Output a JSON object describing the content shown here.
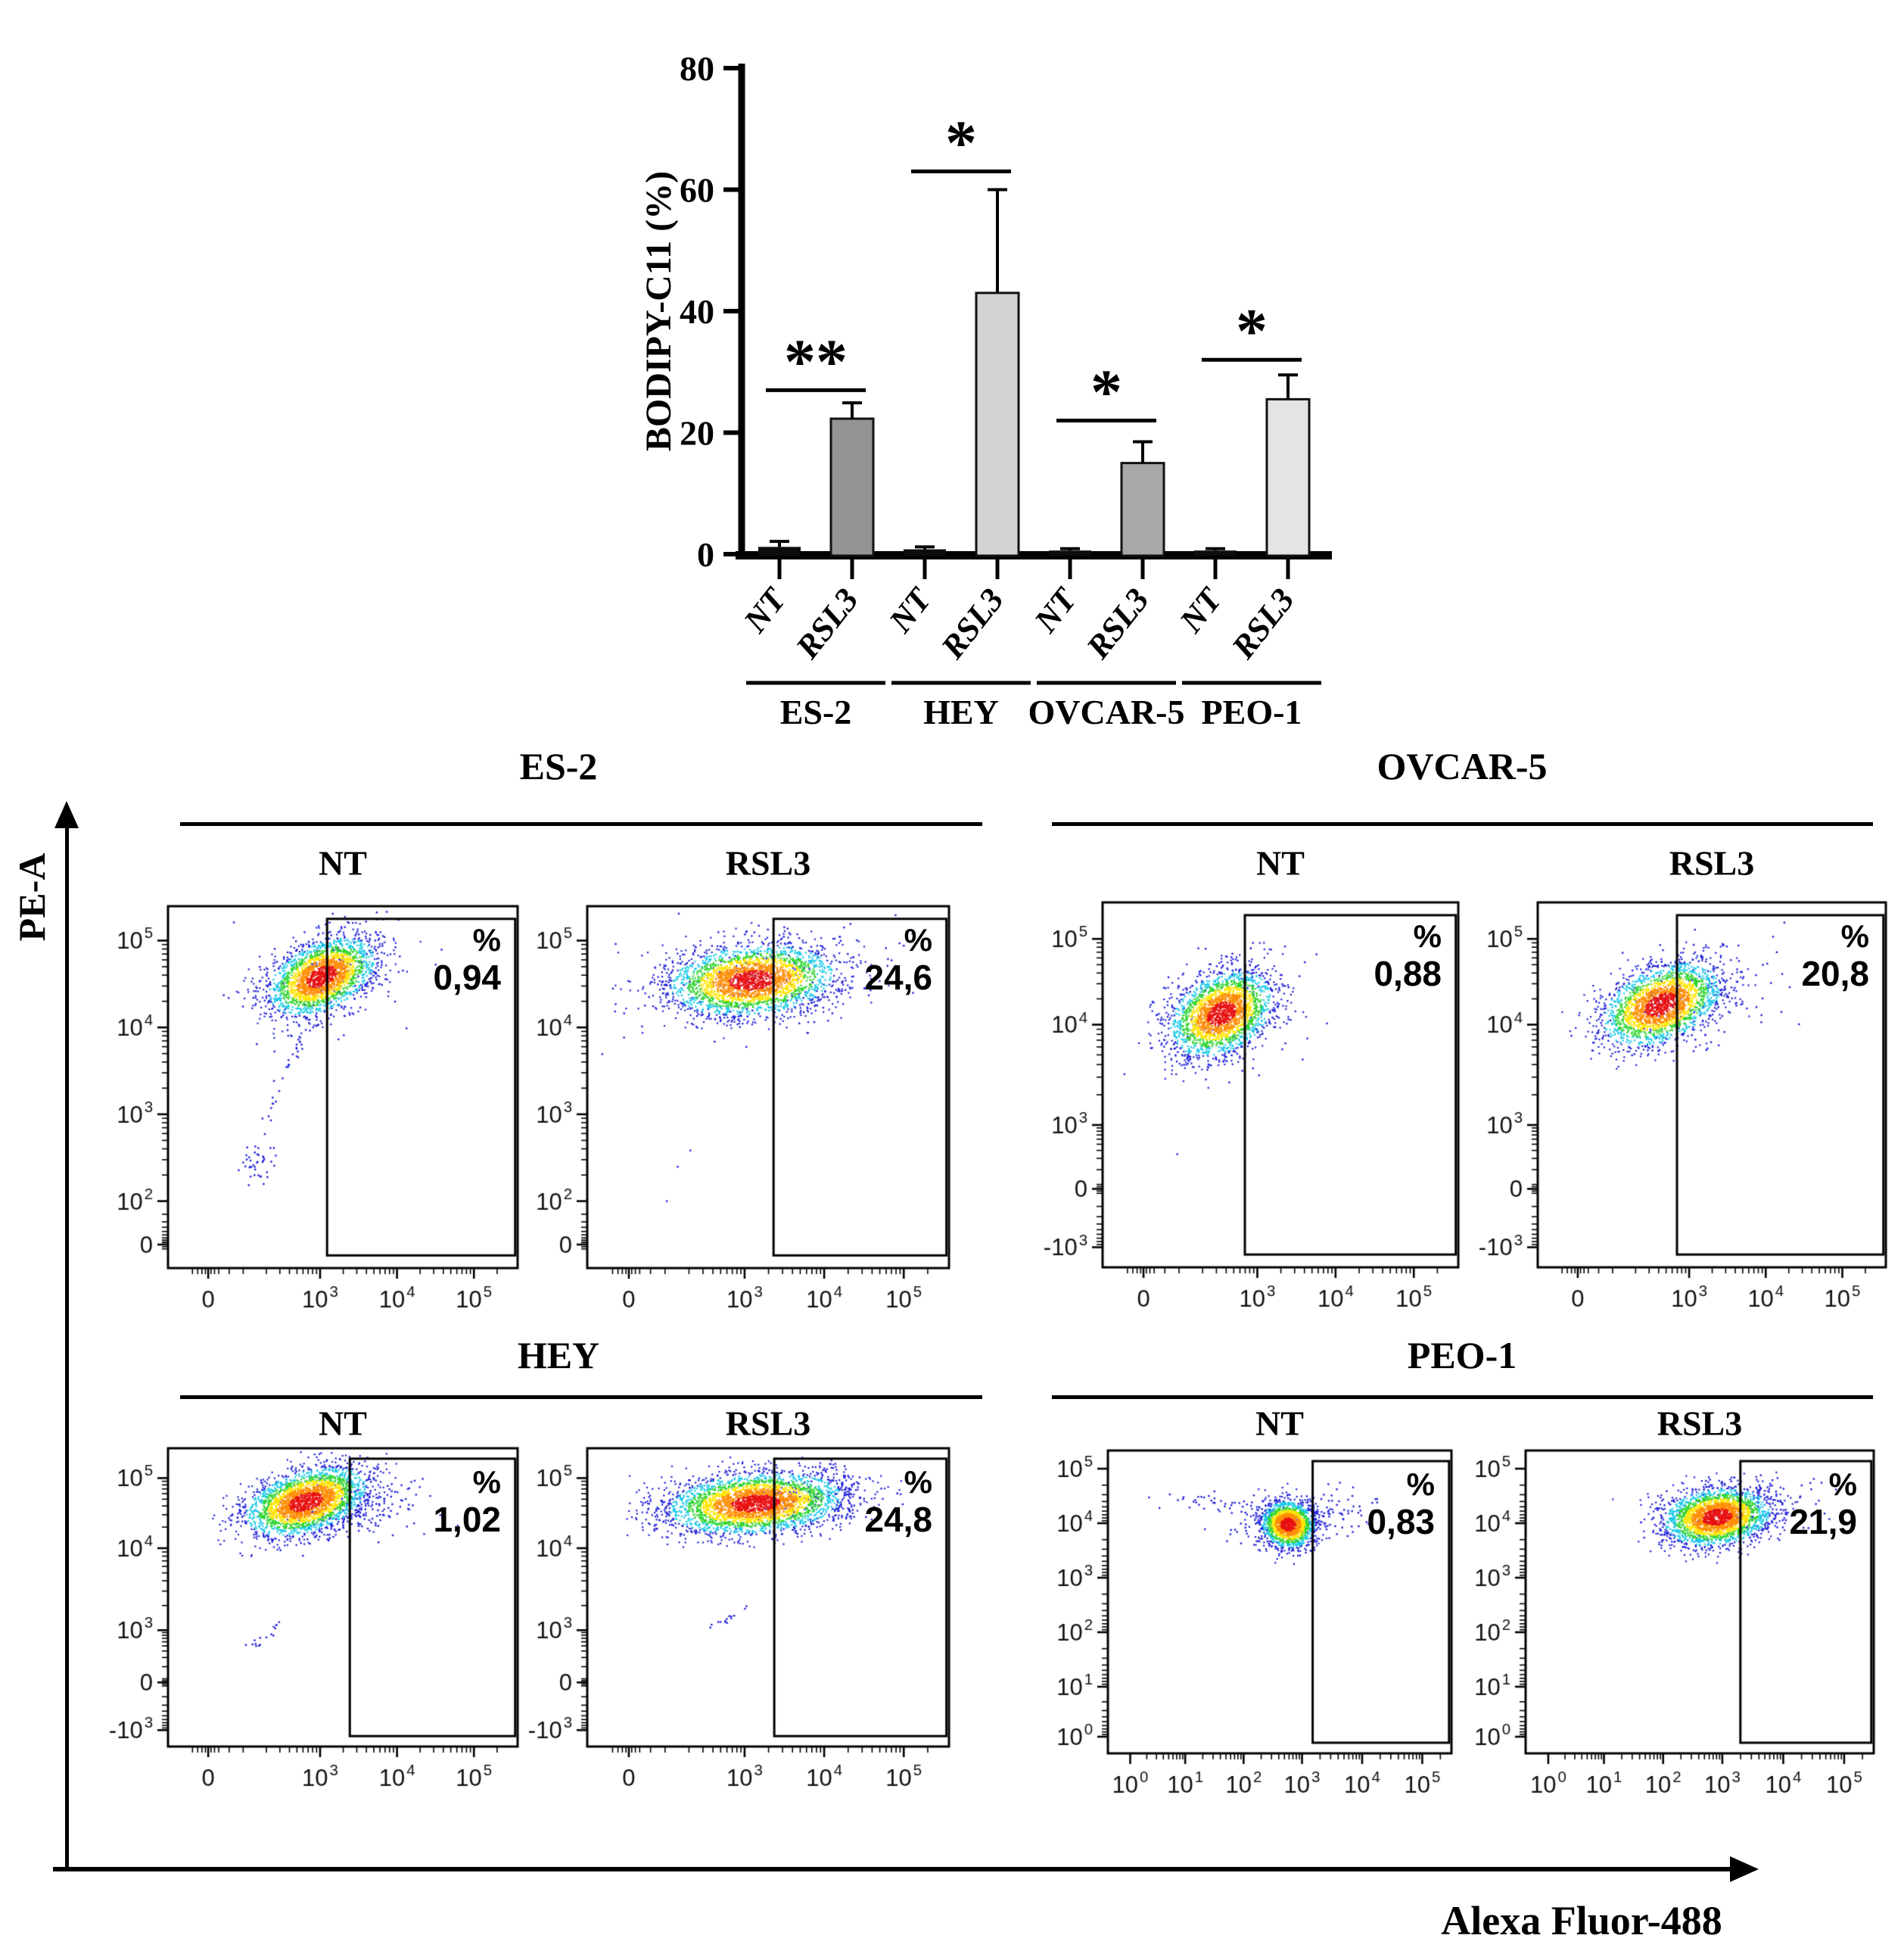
{
  "chart_data": [
    {
      "type": "bar",
      "title": "",
      "ylabel": "BODIPY-C11 (%)",
      "ylim": [
        0,
        80
      ],
      "yticks": [
        0,
        20,
        40,
        60,
        80
      ],
      "categories": [
        "ES-2",
        "HEY",
        "OVCAR-5",
        "PEO-1"
      ],
      "conditions": [
        "NT",
        "RSL3"
      ],
      "series": [
        {
          "name": "NT",
          "values": [
            1.2,
            0.8,
            0.6,
            0.6
          ],
          "errors": [
            0.9,
            0.4,
            0.3,
            0.3
          ],
          "color": "#0d0d0d"
        },
        {
          "name": "RSL3",
          "values": [
            22.3,
            43.0,
            15.0,
            25.5
          ],
          "errors": [
            2.6,
            17.0,
            3.5,
            4.0
          ],
          "bar_colors": [
            "#949494",
            "#d4d4d4",
            "#a8a8a8",
            "#e4e4e4"
          ]
        }
      ],
      "significance": [
        {
          "category": "ES-2",
          "label": "**",
          "bracket_y": 27
        },
        {
          "category": "HEY",
          "label": "*",
          "bracket_y": 63
        },
        {
          "category": "OVCAR-5",
          "label": "*",
          "bracket_y": 22
        },
        {
          "category": "PEO-1",
          "label": "*",
          "bracket_y": 32
        }
      ],
      "legend": "none",
      "grid": false
    },
    {
      "type": "scatter",
      "subtype": "flow-cytometry-density-plots",
      "x_axis_label": "Alexa Fluor-488",
      "y_axis_label": "PE-A",
      "groups": [
        "ES-2",
        "OVCAR-5",
        "HEY",
        "PEO-1"
      ],
      "panels": [
        {
          "group": "ES-2",
          "condition": "NT",
          "percent_label": "%",
          "percent": "0,94",
          "x_ticks": [
            "0",
            "10^3",
            "10^4",
            "10^5"
          ],
          "y_ticks": [
            "10^5",
            "10^4",
            "10^3",
            "10^2",
            "0"
          ],
          "gate_left_frac": 0.455,
          "population": {
            "seed": 11,
            "clusters": [
              {
                "cx": 0.44,
                "cy": 0.195,
                "sx": 0.082,
                "sy": 0.046,
                "rot": -25,
                "n": 2300,
                "dense": true
              },
              {
                "cx": 0.47,
                "cy": 0.18,
                "sx": 0.14,
                "sy": 0.075,
                "rot": -25,
                "n": 130,
                "dense": false
              },
              {
                "cx": 0.26,
                "cy": 0.715,
                "sx": 0.028,
                "sy": 0.022,
                "rot": -35,
                "n": 40,
                "dense": false
              }
            ],
            "segments": [
              {
                "x1": 0.41,
                "y1": 0.33,
                "x2": 0.31,
                "y2": 0.5,
                "n": 22,
                "j": 0.013
              },
              {
                "x1": 0.31,
                "y1": 0.52,
                "x2": 0.27,
                "y2": 0.63,
                "n": 10,
                "j": 0.012
              }
            ],
            "strays": [
              [
                0.52,
                0.3
              ],
              [
                0.55,
                0.28
              ],
              [
                0.5,
                0.14
              ]
            ]
          }
        },
        {
          "group": "ES-2",
          "condition": "RSL3",
          "percent_label": "%",
          "percent": "24,6",
          "x_ticks": [
            "0",
            "10^3",
            "10^4",
            "10^5"
          ],
          "y_ticks": [
            "10^5",
            "10^4",
            "10^3",
            "10^2",
            "0"
          ],
          "gate_left_frac": 0.515,
          "population": {
            "seed": 22,
            "clusters": [
              {
                "cx": 0.455,
                "cy": 0.205,
                "sx": 0.115,
                "sy": 0.048,
                "rot": -5,
                "n": 2700,
                "dense": true
              },
              {
                "cx": 0.47,
                "cy": 0.2,
                "sx": 0.19,
                "sy": 0.08,
                "rot": -5,
                "n": 170,
                "dense": false
              }
            ],
            "segments": [],
            "strays": [
              [
                0.25,
                0.72
              ],
              [
                0.285,
                0.675
              ],
              [
                0.22,
                0.815
              ],
              [
                0.83,
                0.165
              ]
            ]
          }
        },
        {
          "group": "OVCAR-5",
          "condition": "NT",
          "percent_label": "%",
          "percent": "0,88",
          "x_ticks": [
            "0",
            "10^3",
            "10^4",
            "10^5"
          ],
          "y_ticks": [
            "10^5",
            "10^4",
            "10^3",
            "0",
            "-10^3"
          ],
          "gate_left_frac": 0.4,
          "population": {
            "seed": 33,
            "clusters": [
              {
                "cx": 0.335,
                "cy": 0.305,
                "sx": 0.078,
                "sy": 0.052,
                "rot": -28,
                "n": 2300,
                "dense": true
              },
              {
                "cx": 0.35,
                "cy": 0.3,
                "sx": 0.13,
                "sy": 0.085,
                "rot": -28,
                "n": 120,
                "dense": false
              }
            ],
            "segments": [],
            "strays": [
              [
                0.21,
                0.69
              ],
              [
                0.52,
                0.27
              ]
            ]
          }
        },
        {
          "group": "OVCAR-5",
          "condition": "RSL3",
          "percent_label": "%",
          "percent": "20,8",
          "x_ticks": [
            "0",
            "10^3",
            "10^4",
            "10^5"
          ],
          "y_ticks": [
            "10^5",
            "10^4",
            "10^3",
            "0",
            "-10^3"
          ],
          "gate_left_frac": 0.4,
          "population": {
            "seed": 44,
            "clusters": [
              {
                "cx": 0.355,
                "cy": 0.28,
                "sx": 0.09,
                "sy": 0.05,
                "rot": -22,
                "n": 2300,
                "dense": true
              },
              {
                "cx": 0.43,
                "cy": 0.27,
                "sx": 0.13,
                "sy": 0.07,
                "rot": -15,
                "n": 160,
                "dense": false
              }
            ],
            "segments": [],
            "strays": [
              [
                0.7,
                0.3
              ]
            ]
          }
        },
        {
          "group": "HEY",
          "condition": "NT",
          "percent_label": "%",
          "percent": "1,02",
          "x_ticks": [
            "0",
            "10^3",
            "10^4",
            "10^5"
          ],
          "y_ticks": [
            "10^5",
            "10^4",
            "10^3",
            "0",
            "-10^3"
          ],
          "gate_left_frac": 0.52,
          "population": {
            "seed": 55,
            "clusters": [
              {
                "cx": 0.395,
                "cy": 0.18,
                "sx": 0.092,
                "sy": 0.05,
                "rot": -22,
                "n": 2600,
                "dense": true
              },
              {
                "cx": 0.52,
                "cy": 0.2,
                "sx": 0.11,
                "sy": 0.06,
                "rot": -10,
                "n": 180,
                "dense": false
              }
            ],
            "segments": [
              {
                "x1": 0.23,
                "y1": 0.67,
                "x2": 0.33,
                "y2": 0.59,
                "n": 16,
                "j": 0.012
              }
            ],
            "strays": [
              [
                0.72,
                0.13
              ],
              [
                0.68,
                0.17
              ],
              [
                0.75,
                0.16
              ],
              [
                0.64,
                0.12
              ]
            ]
          }
        },
        {
          "group": "HEY",
          "condition": "RSL3",
          "percent_label": "%",
          "percent": "24,8",
          "x_ticks": [
            "0",
            "10^3",
            "10^4",
            "10^5"
          ],
          "y_ticks": [
            "10^5",
            "10^4",
            "10^3",
            "0",
            "-10^3"
          ],
          "gate_left_frac": 0.517,
          "population": {
            "seed": 66,
            "clusters": [
              {
                "cx": 0.465,
                "cy": 0.185,
                "sx": 0.122,
                "sy": 0.05,
                "rot": -6,
                "n": 3100,
                "dense": true
              },
              {
                "cx": 0.63,
                "cy": 0.165,
                "sx": 0.09,
                "sy": 0.045,
                "rot": -8,
                "n": 150,
                "dense": false
              }
            ],
            "segments": [
              {
                "x1": 0.33,
                "y1": 0.62,
                "x2": 0.43,
                "y2": 0.53,
                "n": 14,
                "j": 0.012
              }
            ],
            "strays": []
          }
        },
        {
          "group": "PEO-1",
          "condition": "NT",
          "percent_label": "%",
          "percent": "0,83",
          "x_ticks": [
            "10^0",
            "10^1",
            "10^2",
            "10^3",
            "10^4",
            "10^5"
          ],
          "y_ticks": [
            "10^5",
            "10^4",
            "10^3",
            "10^2",
            "10^1",
            "10^0"
          ],
          "gate_left_frac": 0.596,
          "population": {
            "seed": 77,
            "clusters": [
              {
                "cx": 0.525,
                "cy": 0.245,
                "sx": 0.038,
                "sy": 0.04,
                "rot": -50,
                "n": 1600,
                "dense": true
              },
              {
                "cx": 0.52,
                "cy": 0.22,
                "sx": 0.09,
                "sy": 0.05,
                "rot": -20,
                "n": 90,
                "dense": false
              },
              {
                "cx": 0.66,
                "cy": 0.21,
                "sx": 0.06,
                "sy": 0.04,
                "rot": 0,
                "n": 50,
                "dense": false
              }
            ],
            "segments": [
              {
                "x1": 0.2,
                "y1": 0.16,
                "x2": 0.46,
                "y2": 0.2,
                "n": 40,
                "j": 0.022
              }
            ],
            "strays": [
              [
                0.12,
                0.155
              ],
              [
                0.15,
                0.19
              ],
              [
                0.31,
                0.135
              ],
              [
                0.77,
                0.2
              ],
              [
                0.73,
                0.25
              ]
            ]
          }
        },
        {
          "group": "PEO-1",
          "condition": "RSL3",
          "percent_label": "%",
          "percent": "21,9",
          "x_ticks": [
            "10^0",
            "10^1",
            "10^2",
            "10^3",
            "10^4",
            "10^5"
          ],
          "y_ticks": [
            "10^5",
            "10^4",
            "10^3",
            "10^2",
            "10^1",
            "10^0"
          ],
          "gate_left_frac": 0.617,
          "population": {
            "seed": 88,
            "clusters": [
              {
                "cx": 0.55,
                "cy": 0.22,
                "sx": 0.078,
                "sy": 0.047,
                "rot": -10,
                "n": 2400,
                "dense": true
              },
              {
                "cx": 0.63,
                "cy": 0.2,
                "sx": 0.1,
                "sy": 0.05,
                "rot": -10,
                "n": 140,
                "dense": false
              }
            ],
            "segments": [],
            "strays": []
          }
        }
      ]
    }
  ]
}
